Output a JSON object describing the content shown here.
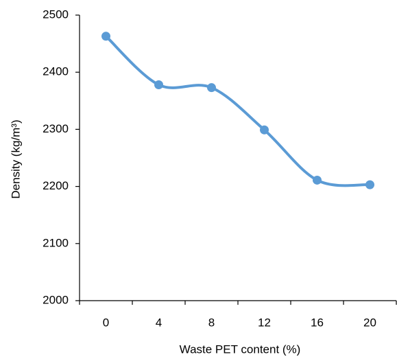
{
  "chart_data": {
    "type": "line",
    "x_label": "Waste PET content (%)",
    "y_label": "Density (kg/m³)",
    "categories": [
      "0",
      "4",
      "8",
      "12",
      "16",
      "20"
    ],
    "values": [
      2463,
      2378,
      2373,
      2299,
      2211,
      2203
    ],
    "color": "#5b9bd5",
    "smooth": true,
    "ylim": [
      2000,
      2500
    ],
    "yticks": [
      2000,
      2100,
      2200,
      2300,
      2400,
      2500
    ]
  }
}
